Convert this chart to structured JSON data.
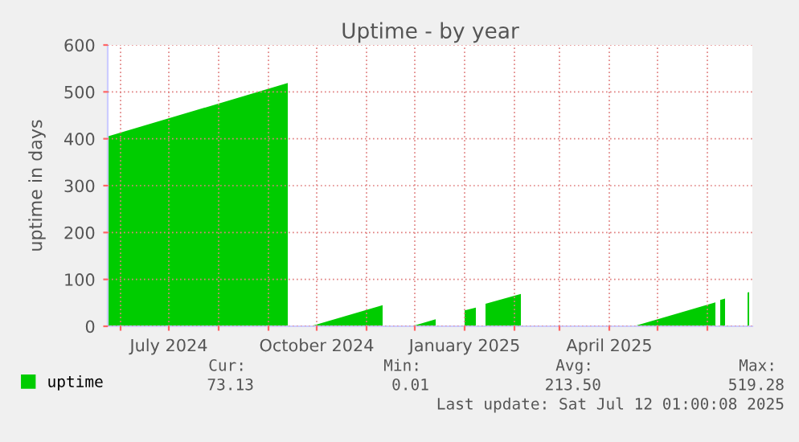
{
  "chart_data": {
    "type": "area",
    "title": "Uptime - by year",
    "ylabel": "uptime in days",
    "x": [
      "2024-05-24",
      "2024-09-13",
      "2024-09-14",
      "2024-09-28",
      "2024-11-11",
      "2024-11-12",
      "2024-11-30",
      "2024-12-14",
      "2024-12-15",
      "2025-01-01",
      "2025-01-08",
      "2025-01-09",
      "2025-01-14",
      "2025-02-05",
      "2025-02-06",
      "2025-04-17",
      "2025-06-06",
      "2025-06-07",
      "2025-06-09",
      "2025-06-12",
      "2025-06-13",
      "2025-06-26",
      "2025-06-27"
    ],
    "series": [
      {
        "name": "uptime",
        "color": "#00cc00",
        "values": [
          405,
          519,
          null,
          1,
          45,
          null,
          1,
          15,
          null,
          34,
          40,
          null,
          48,
          69,
          null,
          1,
          51,
          null,
          56,
          59,
          null,
          72,
          73
        ]
      }
    ],
    "xlim": [
      "2024-05-24",
      "2025-06-29"
    ],
    "xticks": [
      {
        "value": "2024-06-01",
        "label": null
      },
      {
        "value": "2024-07-01",
        "label": "July 2024"
      },
      {
        "value": "2024-08-01",
        "label": null
      },
      {
        "value": "2024-09-01",
        "label": null
      },
      {
        "value": "2024-10-01",
        "label": "October 2024"
      },
      {
        "value": "2024-11-01",
        "label": null
      },
      {
        "value": "2024-12-01",
        "label": null
      },
      {
        "value": "2025-01-01",
        "label": "January 2025"
      },
      {
        "value": "2025-02-01",
        "label": null
      },
      {
        "value": "2025-03-01",
        "label": null
      },
      {
        "value": "2025-04-01",
        "label": "April 2025"
      },
      {
        "value": "2025-05-01",
        "label": null
      },
      {
        "value": "2025-06-01",
        "label": null
      }
    ],
    "ylim": [
      0,
      600
    ],
    "yticks": [
      0,
      100,
      200,
      300,
      400,
      500,
      600
    ],
    "grid": true,
    "legend": "bottom left",
    "annotations": [
      "Cur:",
      "Min:",
      "Avg:",
      "Max:",
      "73.13",
      "0.01",
      "213.50",
      "519.28",
      "Last update: Sat Jul 12 01:00:08 2025"
    ]
  }
}
